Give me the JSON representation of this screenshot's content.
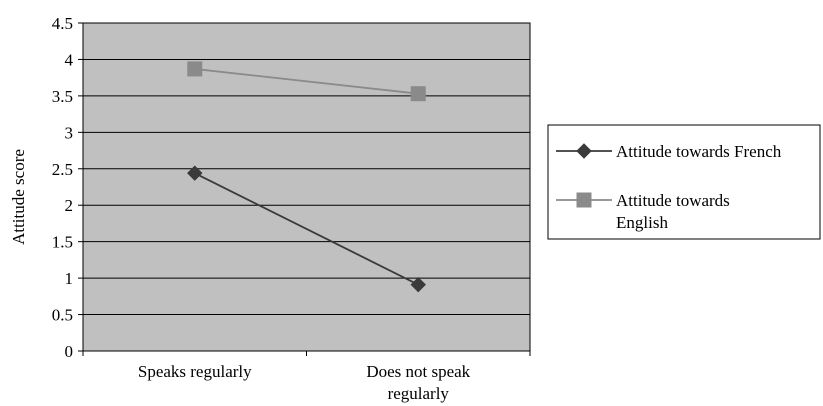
{
  "chart_data": {
    "type": "line",
    "title": "",
    "xlabel": "",
    "ylabel": "Attitude score",
    "categories": [
      [
        "Speaks regularly"
      ],
      [
        "Does not speak",
        "regularly"
      ]
    ],
    "ylim": [
      0,
      4.5
    ],
    "yticks": [
      "0",
      "0.5",
      "1",
      "1.5",
      "2",
      "2.5",
      "3",
      "3.5",
      "4",
      "4.5"
    ],
    "grid": true,
    "legend_position": "right",
    "series": [
      {
        "name": [
          "Attitude towards French"
        ],
        "values": [
          2.44,
          0.91
        ],
        "color": "#3a3a3a",
        "marker": "diamond"
      },
      {
        "name": [
          "Attitude towards",
          "English"
        ],
        "values": [
          3.87,
          3.53
        ],
        "color": "#8a8a8a",
        "marker": "square"
      }
    ],
    "colors": {
      "plot_background": "#c0c0c0",
      "gridline": "#000000"
    }
  }
}
